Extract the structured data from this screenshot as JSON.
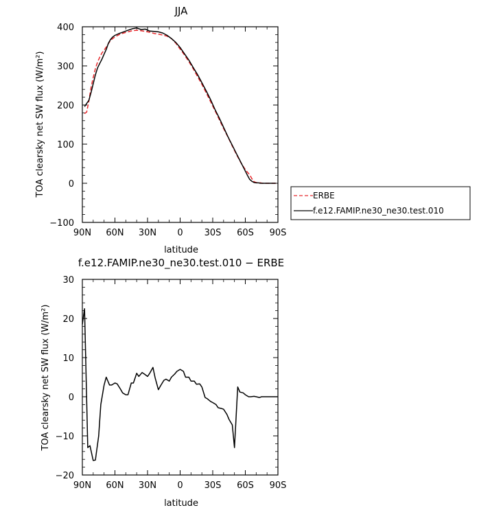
{
  "chart_data": [
    {
      "type": "line",
      "title": "JJA",
      "xlabel": "latitude",
      "ylabel": "TOA clearsky net SW flux (W/m²)",
      "xlim": [
        90,
        -90
      ],
      "ylim": [
        -100,
        400
      ],
      "xticks": [
        {
          "value": 90,
          "label": "90N"
        },
        {
          "value": 60,
          "label": "60N"
        },
        {
          "value": 30,
          "label": "30N"
        },
        {
          "value": 0,
          "label": "0"
        },
        {
          "value": -30,
          "label": "30S"
        },
        {
          "value": -60,
          "label": "60S"
        },
        {
          "value": -90,
          "label": "90S"
        }
      ],
      "yticks": [
        {
          "value": -100,
          "label": "−100"
        },
        {
          "value": 0,
          "label": "0"
        },
        {
          "value": 100,
          "label": "100"
        },
        {
          "value": 200,
          "label": "200"
        },
        {
          "value": 300,
          "label": "300"
        },
        {
          "value": 400,
          "label": "400"
        }
      ],
      "legend": "right",
      "series": [
        {
          "name": "ERBE",
          "color": "#e8262a",
          "dash": "dashed",
          "x": [
            88,
            86,
            84,
            82,
            80,
            78,
            76,
            74,
            72,
            70,
            68,
            66,
            64,
            62,
            60,
            56,
            52,
            48,
            44,
            40,
            36,
            32,
            28,
            24,
            20,
            16,
            12,
            8,
            4,
            0,
            -4,
            -8,
            -12,
            -16,
            -20,
            -24,
            -28,
            -32,
            -36,
            -40,
            -44,
            -48,
            -52,
            -56,
            -60,
            -62,
            -64,
            -66,
            -68,
            -70,
            -72,
            -74,
            -76,
            -78,
            -80,
            -82,
            -84,
            -86,
            -88
          ],
          "y": [
            178,
            182,
            210,
            245,
            270,
            293,
            310,
            322,
            333,
            340,
            348,
            357,
            365,
            370,
            374,
            380,
            384,
            387,
            390,
            391,
            390,
            388,
            386,
            383,
            381,
            379,
            376,
            370,
            358,
            343,
            328,
            311,
            293,
            273,
            253,
            231,
            209,
            186,
            163,
            140,
            118,
            95,
            73,
            52,
            35,
            28,
            22,
            12,
            4,
            2,
            1,
            1,
            0,
            0,
            0,
            0,
            0,
            0,
            0
          ]
        },
        {
          "name": "f.e12.FAMIP.ne30_ne30.test.010",
          "color": "#000000",
          "dash": "solid",
          "x": [
            88,
            86,
            84,
            82,
            80,
            78,
            76,
            74,
            72,
            70,
            68,
            66,
            64,
            62,
            60,
            56,
            52,
            48,
            44,
            40,
            36,
            32,
            28,
            24,
            20,
            16,
            12,
            8,
            4,
            0,
            -4,
            -8,
            -12,
            -16,
            -20,
            -24,
            -28,
            -32,
            -36,
            -40,
            -44,
            -48,
            -52,
            -56,
            -60,
            -62,
            -64,
            -66,
            -68,
            -70,
            -72,
            -74,
            -76,
            -78,
            -80,
            -82,
            -84,
            -86,
            -88
          ],
          "y": [
            196,
            204,
            212,
            232,
            254,
            277,
            295,
            306,
            317,
            330,
            342,
            358,
            368,
            374,
            378,
            383,
            387,
            391,
            395,
            397,
            393,
            394,
            389,
            388,
            387,
            384,
            378,
            370,
            360,
            347,
            331,
            315,
            296,
            278,
            257,
            236,
            214,
            189,
            167,
            143,
            119,
            97,
            75,
            53,
            31,
            20,
            10,
            5,
            2,
            1,
            1,
            0,
            0,
            0,
            0,
            0,
            0,
            0,
            0
          ]
        }
      ]
    },
    {
      "type": "line",
      "title": "f.e12.FAMIP.ne30_ne30.test.010 − ERBE",
      "xlabel": "latitude",
      "ylabel": "TOA clearsky net SW flux (W/m²)",
      "xlim": [
        90,
        -90
      ],
      "ylim": [
        -20,
        30
      ],
      "xticks": [
        {
          "value": 90,
          "label": "90N"
        },
        {
          "value": 60,
          "label": "60N"
        },
        {
          "value": 30,
          "label": "30N"
        },
        {
          "value": 0,
          "label": "0"
        },
        {
          "value": -30,
          "label": "30S"
        },
        {
          "value": -60,
          "label": "60S"
        },
        {
          "value": -90,
          "label": "90S"
        }
      ],
      "yticks": [
        {
          "value": -20,
          "label": "−20"
        },
        {
          "value": -10,
          "label": "−10"
        },
        {
          "value": 0,
          "label": "0"
        },
        {
          "value": 10,
          "label": "10"
        },
        {
          "value": 20,
          "label": "20"
        },
        {
          "value": 30,
          "label": "30"
        }
      ],
      "series": [
        {
          "color": "#000000",
          "dash": "solid",
          "x": [
            90,
            88,
            85,
            83,
            80,
            78,
            75,
            73,
            70,
            68,
            65,
            63,
            60,
            58,
            55,
            53,
            50,
            48,
            45,
            43,
            40,
            38,
            35,
            33,
            30,
            28,
            25,
            23,
            20,
            18,
            15,
            13,
            10,
            8,
            5,
            3,
            0,
            -3,
            -5,
            -8,
            -10,
            -13,
            -15,
            -18,
            -20,
            -23,
            -25,
            -28,
            -30,
            -33,
            -35,
            -38,
            -40,
            -43,
            -45,
            -48,
            -50,
            -53,
            -55,
            -58,
            -60,
            -63,
            -65,
            -68,
            -70,
            -73,
            -75,
            -78,
            -80,
            -83,
            -85,
            -88,
            -90
          ],
          "y": [
            18.5,
            22.5,
            -13,
            -12.5,
            -16.3,
            -16.2,
            -10,
            -2,
            3,
            5,
            3,
            3,
            3.5,
            3.3,
            2,
            1,
            0.5,
            0.5,
            3.5,
            3.5,
            6,
            5.2,
            6.2,
            5.8,
            5.2,
            6,
            7.5,
            4.8,
            1.8,
            2.8,
            4.2,
            4.5,
            4,
            5,
            5.8,
            6.5,
            7,
            6.5,
            5,
            5,
            4,
            4,
            3.2,
            3.3,
            2.5,
            -0.2,
            -0.5,
            -1.2,
            -1.5,
            -2,
            -2.8,
            -3,
            -3.2,
            -4.5,
            -5.8,
            -7.2,
            -13,
            2.5,
            1.2,
            1,
            0.5,
            0,
            0,
            0.1,
            0,
            -0.2,
            0,
            0,
            0,
            0,
            0,
            0,
            0
          ]
        }
      ]
    }
  ]
}
